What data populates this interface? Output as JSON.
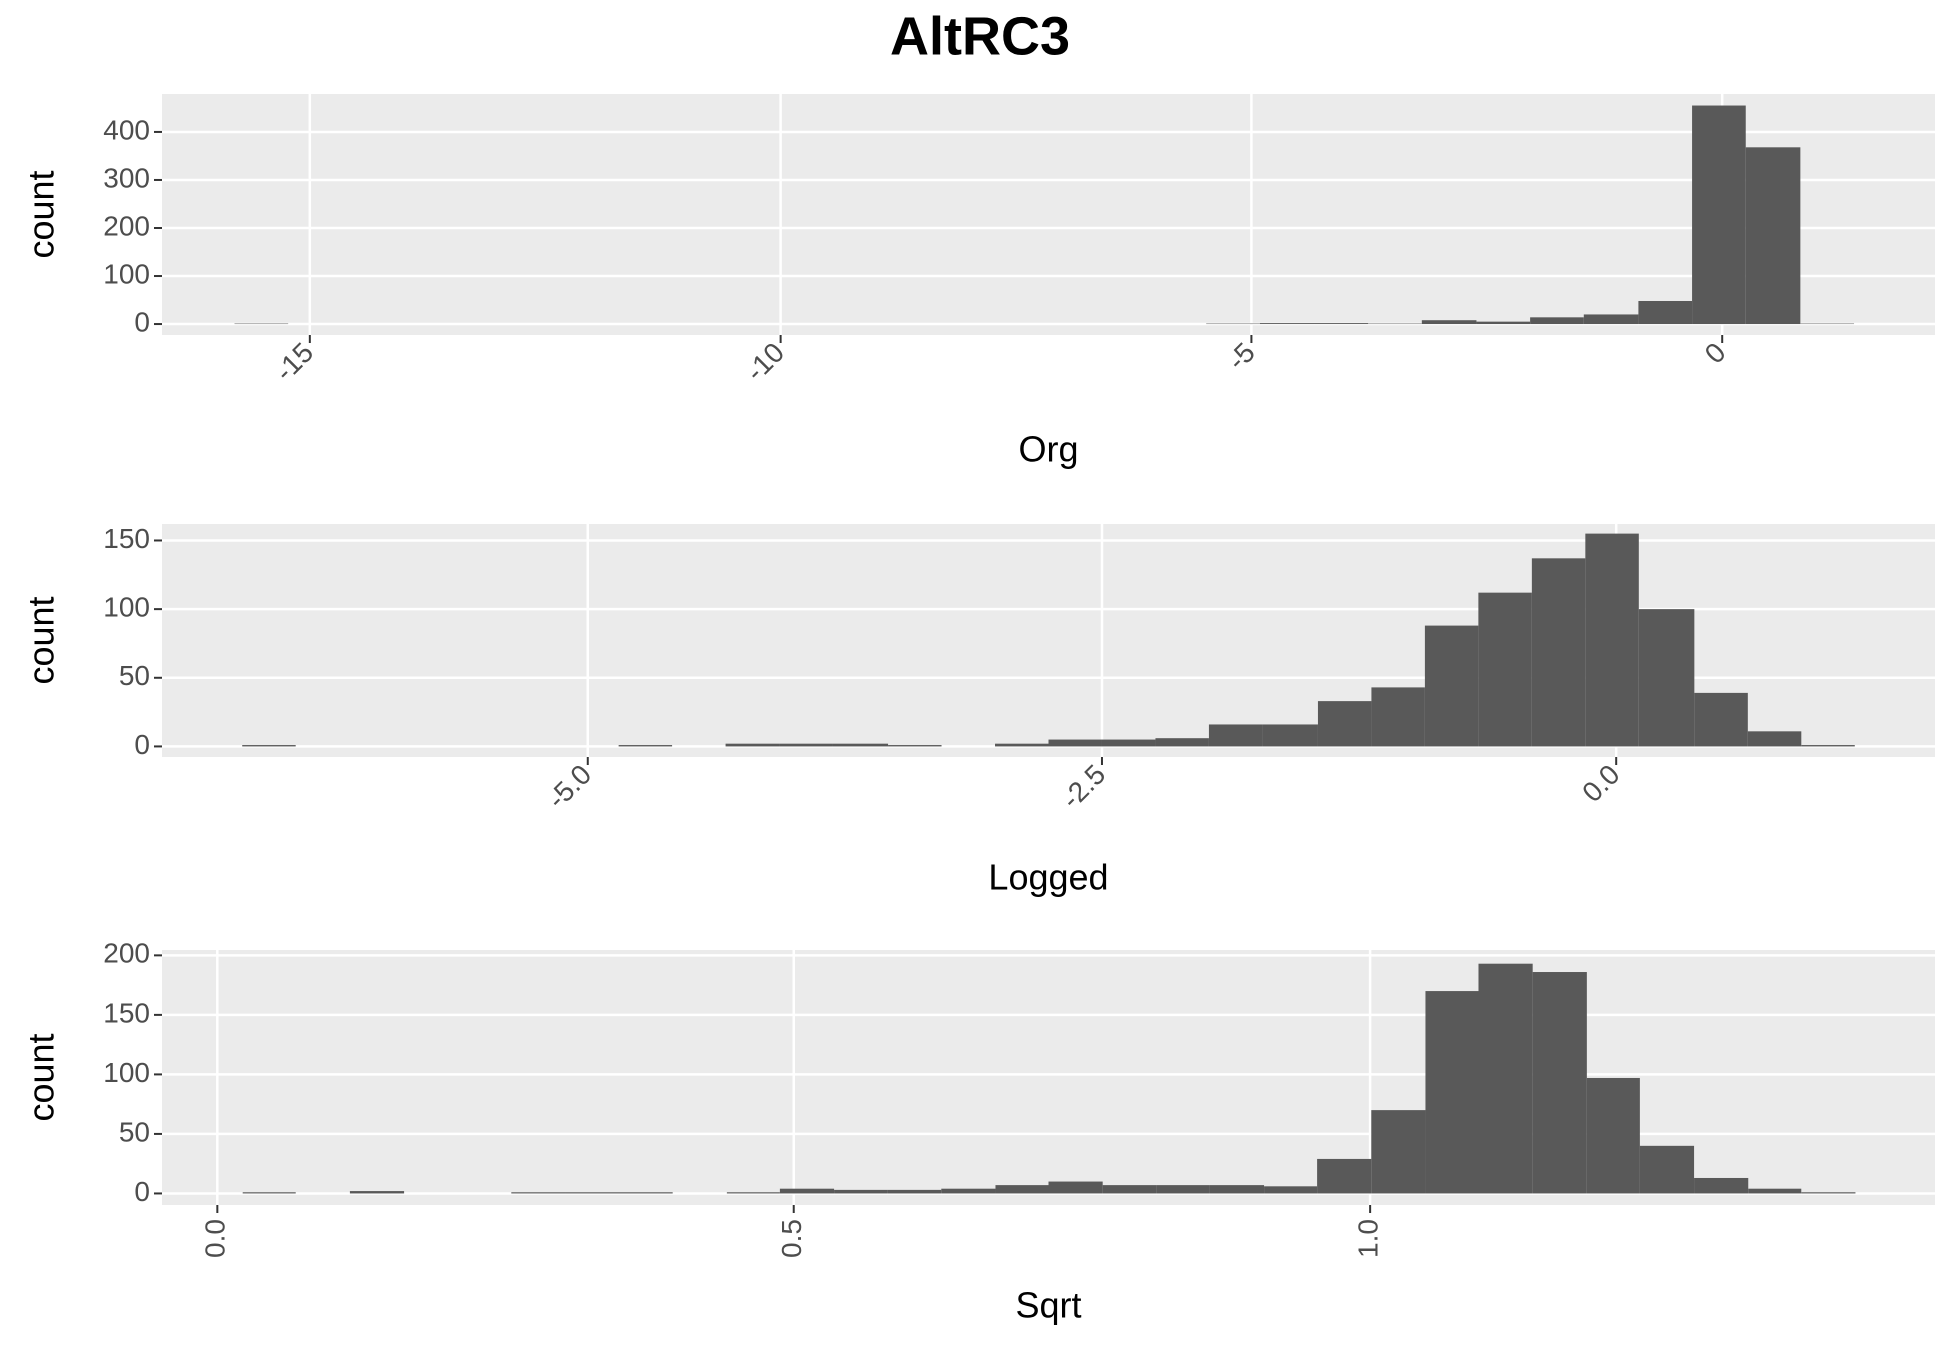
{
  "title": "AltRC3",
  "chart_data": [
    {
      "type": "histogram",
      "xlabel": "Org",
      "ylabel": "count",
      "color": "#595959",
      "grid": true,
      "xtick_angle": 45,
      "bins": [
        -15.8,
        -15.23,
        -14.65,
        -14.08,
        -13.51,
        -12.93,
        -12.36,
        -11.79,
        -11.21,
        -10.64,
        -10.07,
        -9.49,
        -8.92,
        -8.35,
        -7.77,
        -7.2,
        -6.63,
        -6.05,
        -5.48,
        -4.91,
        -4.33,
        -3.76,
        -3.19,
        -2.61,
        -2.04,
        -1.47,
        -0.89,
        -0.32,
        0.25,
        0.83,
        1.4
      ],
      "values": [
        1,
        0,
        0,
        0,
        0,
        0,
        0,
        0,
        0,
        0,
        0,
        0,
        0,
        0,
        0,
        0,
        0,
        0,
        1,
        2,
        2,
        1,
        8,
        5,
        14,
        20,
        48,
        455,
        368,
        1
      ],
      "xlim": [
        -16.57,
        2.26
      ],
      "ylim": [
        -22.8,
        479
      ],
      "xticks": [
        -15,
        -10,
        -5,
        0
      ],
      "yticks": [
        0,
        100,
        200,
        300,
        400
      ]
    },
    {
      "type": "histogram",
      "xlabel": "Logged",
      "ylabel": "count",
      "color": "#595959",
      "grid": true,
      "xtick_angle": 45,
      "bins": [
        -6.68,
        -6.42,
        -6.16,
        -5.9,
        -5.63,
        -5.37,
        -5.11,
        -4.85,
        -4.59,
        -4.33,
        -4.07,
        -3.81,
        -3.54,
        -3.28,
        -3.02,
        -2.76,
        -2.5,
        -2.24,
        -1.98,
        -1.72,
        -1.45,
        -1.19,
        -0.93,
        -0.67,
        -0.41,
        -0.15,
        0.11,
        0.38,
        0.64,
        0.9,
        1.16
      ],
      "values": [
        1,
        0,
        0,
        0,
        0,
        0,
        0,
        1,
        0,
        2,
        2,
        2,
        1,
        0,
        2,
        5,
        5,
        6,
        16,
        16,
        33,
        43,
        88,
        112,
        137,
        155,
        100,
        39,
        11,
        1
      ],
      "xlim": [
        -7.07,
        1.55
      ],
      "ylim": [
        -7.7,
        162
      ],
      "xticks": [
        {
          "value": -5,
          "label": "-5.0"
        },
        {
          "value": -2.5,
          "label": "-2.5"
        },
        {
          "value": 0,
          "label": "0.0"
        }
      ],
      "yticks": [
        0,
        50,
        100,
        150
      ]
    },
    {
      "type": "histogram",
      "xlabel": "Sqrt",
      "ylabel": "count",
      "color": "#595959",
      "grid": true,
      "xtick_angle": 90,
      "bins": [
        0.022,
        0.068,
        0.115,
        0.162,
        0.208,
        0.255,
        0.302,
        0.348,
        0.395,
        0.442,
        0.488,
        0.535,
        0.581,
        0.628,
        0.675,
        0.721,
        0.768,
        0.815,
        0.861,
        0.908,
        0.954,
        1.001,
        1.048,
        1.094,
        1.141,
        1.188,
        1.234,
        1.281,
        1.328,
        1.374,
        1.421
      ],
      "values": [
        1,
        0,
        2,
        0,
        0,
        1,
        1,
        1,
        0,
        1,
        4,
        3,
        3,
        4,
        7,
        10,
        7,
        7,
        7,
        6,
        29,
        70,
        170,
        193,
        186,
        97,
        40,
        13,
        4,
        1
      ],
      "xlim": [
        -0.048,
        1.49
      ],
      "ylim": [
        -9.7,
        204.5
      ],
      "xticks": [
        {
          "value": 0,
          "label": "0.0"
        },
        {
          "value": 0.5,
          "label": "0.5"
        },
        {
          "value": 1,
          "label": "1.0"
        }
      ],
      "yticks": [
        0,
        50,
        100,
        150,
        200
      ]
    }
  ]
}
